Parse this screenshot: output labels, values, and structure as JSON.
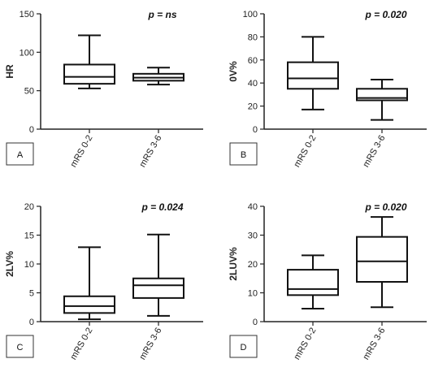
{
  "chart_data": [
    {
      "type": "box",
      "panel_letter": "A",
      "ylabel": "HR",
      "stat_label": "p = ns",
      "ylim": [
        0,
        150
      ],
      "yticks": [
        0,
        50,
        100,
        150
      ],
      "categories": [
        "mRS 0-2",
        "mRS 3-6"
      ],
      "boxes": [
        {
          "min": 53,
          "q1": 59,
          "median": 68,
          "q3": 84,
          "max": 122
        },
        {
          "min": 58,
          "q1": 63,
          "median": 67,
          "q3": 72,
          "max": 80
        }
      ]
    },
    {
      "type": "box",
      "panel_letter": "B",
      "ylabel": "0V%",
      "stat_label": "p = 0.020",
      "ylim": [
        0,
        100
      ],
      "yticks": [
        0,
        20,
        40,
        60,
        80,
        100
      ],
      "categories": [
        "mRS 0-2",
        "mRS 3-6"
      ],
      "boxes": [
        {
          "min": 17,
          "q1": 35,
          "median": 44,
          "q3": 58,
          "max": 80
        },
        {
          "min": 8,
          "q1": 25,
          "median": 27,
          "q3": 35,
          "max": 43
        }
      ]
    },
    {
      "type": "box",
      "panel_letter": "C",
      "ylabel": "2LV%",
      "stat_label": "p = 0.024",
      "ylim": [
        0,
        20
      ],
      "yticks": [
        0,
        5,
        10,
        15,
        20
      ],
      "categories": [
        "mRS 0-2",
        "mRS 3-6"
      ],
      "boxes": [
        {
          "min": 0.4,
          "q1": 1.5,
          "median": 2.7,
          "q3": 4.4,
          "max": 12.9
        },
        {
          "min": 1.0,
          "q1": 4.1,
          "median": 6.3,
          "q3": 7.5,
          "max": 15.1
        }
      ]
    },
    {
      "type": "box",
      "panel_letter": "D",
      "ylabel": "2LUV%",
      "stat_label": "p = 0.020",
      "ylim": [
        0,
        40
      ],
      "yticks": [
        0,
        10,
        20,
        30,
        40
      ],
      "categories": [
        "mRS 0-2",
        "mRS 3-6"
      ],
      "boxes": [
        {
          "min": 4.5,
          "q1": 9.2,
          "median": 11.3,
          "q3": 18.0,
          "max": 23.0
        },
        {
          "min": 5.0,
          "q1": 13.8,
          "median": 20.9,
          "q3": 29.4,
          "max": 36.3
        }
      ]
    }
  ]
}
